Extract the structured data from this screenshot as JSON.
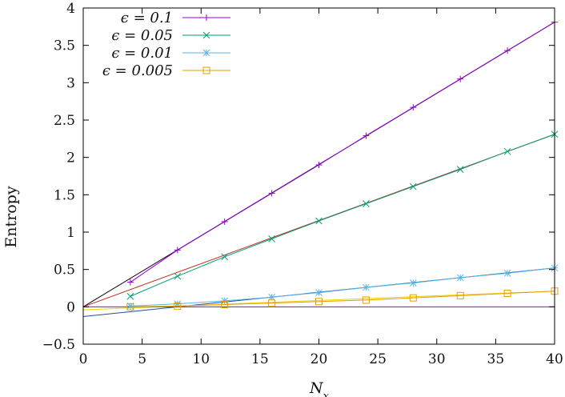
{
  "chart_data": {
    "type": "line",
    "title": "",
    "xlabel": "N_x",
    "ylabel": "Entropy",
    "xlim": [
      0,
      40
    ],
    "ylim": [
      -0.5,
      4
    ],
    "x_ticks": [
      0,
      5,
      10,
      15,
      20,
      25,
      30,
      35,
      40
    ],
    "y_ticks": [
      -0.5,
      0,
      0.5,
      1,
      1.5,
      2,
      2.5,
      3,
      3.5,
      4
    ],
    "x_tick_labels": [
      "0",
      "5",
      "10",
      "15",
      "20",
      "25",
      "30",
      "35",
      "40"
    ],
    "y_tick_labels": [
      "−0.5",
      "0",
      "0.5",
      "1",
      "1.5",
      "2",
      "2.5",
      "3",
      "3.5",
      "4"
    ],
    "legend_position": "top-left",
    "series": [
      {
        "name": "ϵ = 0.1",
        "color": "#9400d3",
        "marker": "plus",
        "x": [
          4,
          8,
          12,
          16,
          20,
          24,
          28,
          32,
          36,
          40
        ],
        "values": [
          0.33,
          0.76,
          1.14,
          1.52,
          1.9,
          2.29,
          2.67,
          3.05,
          3.43,
          3.81
        ]
      },
      {
        "name": "ϵ = 0.05",
        "color": "#009e73",
        "marker": "cross",
        "x": [
          4,
          8,
          12,
          16,
          20,
          24,
          28,
          32,
          36,
          40
        ],
        "values": [
          0.14,
          0.41,
          0.67,
          0.91,
          1.15,
          1.38,
          1.61,
          1.84,
          2.08,
          2.31
        ]
      },
      {
        "name": "ϵ = 0.01",
        "color": "#56b4e9",
        "marker": "star",
        "x": [
          4,
          8,
          12,
          16,
          20,
          24,
          28,
          32,
          36,
          40
        ],
        "values": [
          0.01,
          0.04,
          0.08,
          0.13,
          0.19,
          0.26,
          0.32,
          0.39,
          0.45,
          0.52
        ]
      },
      {
        "name": "ϵ = 0.005",
        "color": "#e69f00",
        "marker": "square",
        "x": [
          4,
          8,
          12,
          16,
          20,
          24,
          28,
          32,
          36,
          40
        ],
        "values": [
          0.0,
          0.01,
          0.03,
          0.05,
          0.07,
          0.09,
          0.12,
          0.15,
          0.18,
          0.21
        ]
      }
    ],
    "fit_lines": [
      {
        "name": "fit-eps-0.1",
        "color": "#000000",
        "x": [
          0,
          40
        ],
        "values": [
          0.0,
          3.81
        ]
      },
      {
        "name": "fit-eps-0.05",
        "color": "#c0392b",
        "x": [
          0,
          40
        ],
        "values": [
          0.0,
          2.31
        ]
      },
      {
        "name": "fit-eps-0.01",
        "color": "#1f4e9c",
        "x": [
          0,
          40
        ],
        "values": [
          -0.13,
          0.52
        ]
      },
      {
        "name": "fit-eps-0.005",
        "color": "#f0d000",
        "x": [
          0,
          40
        ],
        "values": [
          -0.04,
          0.21
        ]
      },
      {
        "name": "zero-line",
        "color": "#9400d3",
        "x": [
          0,
          40
        ],
        "values": [
          0.0,
          0.0
        ]
      }
    ]
  }
}
